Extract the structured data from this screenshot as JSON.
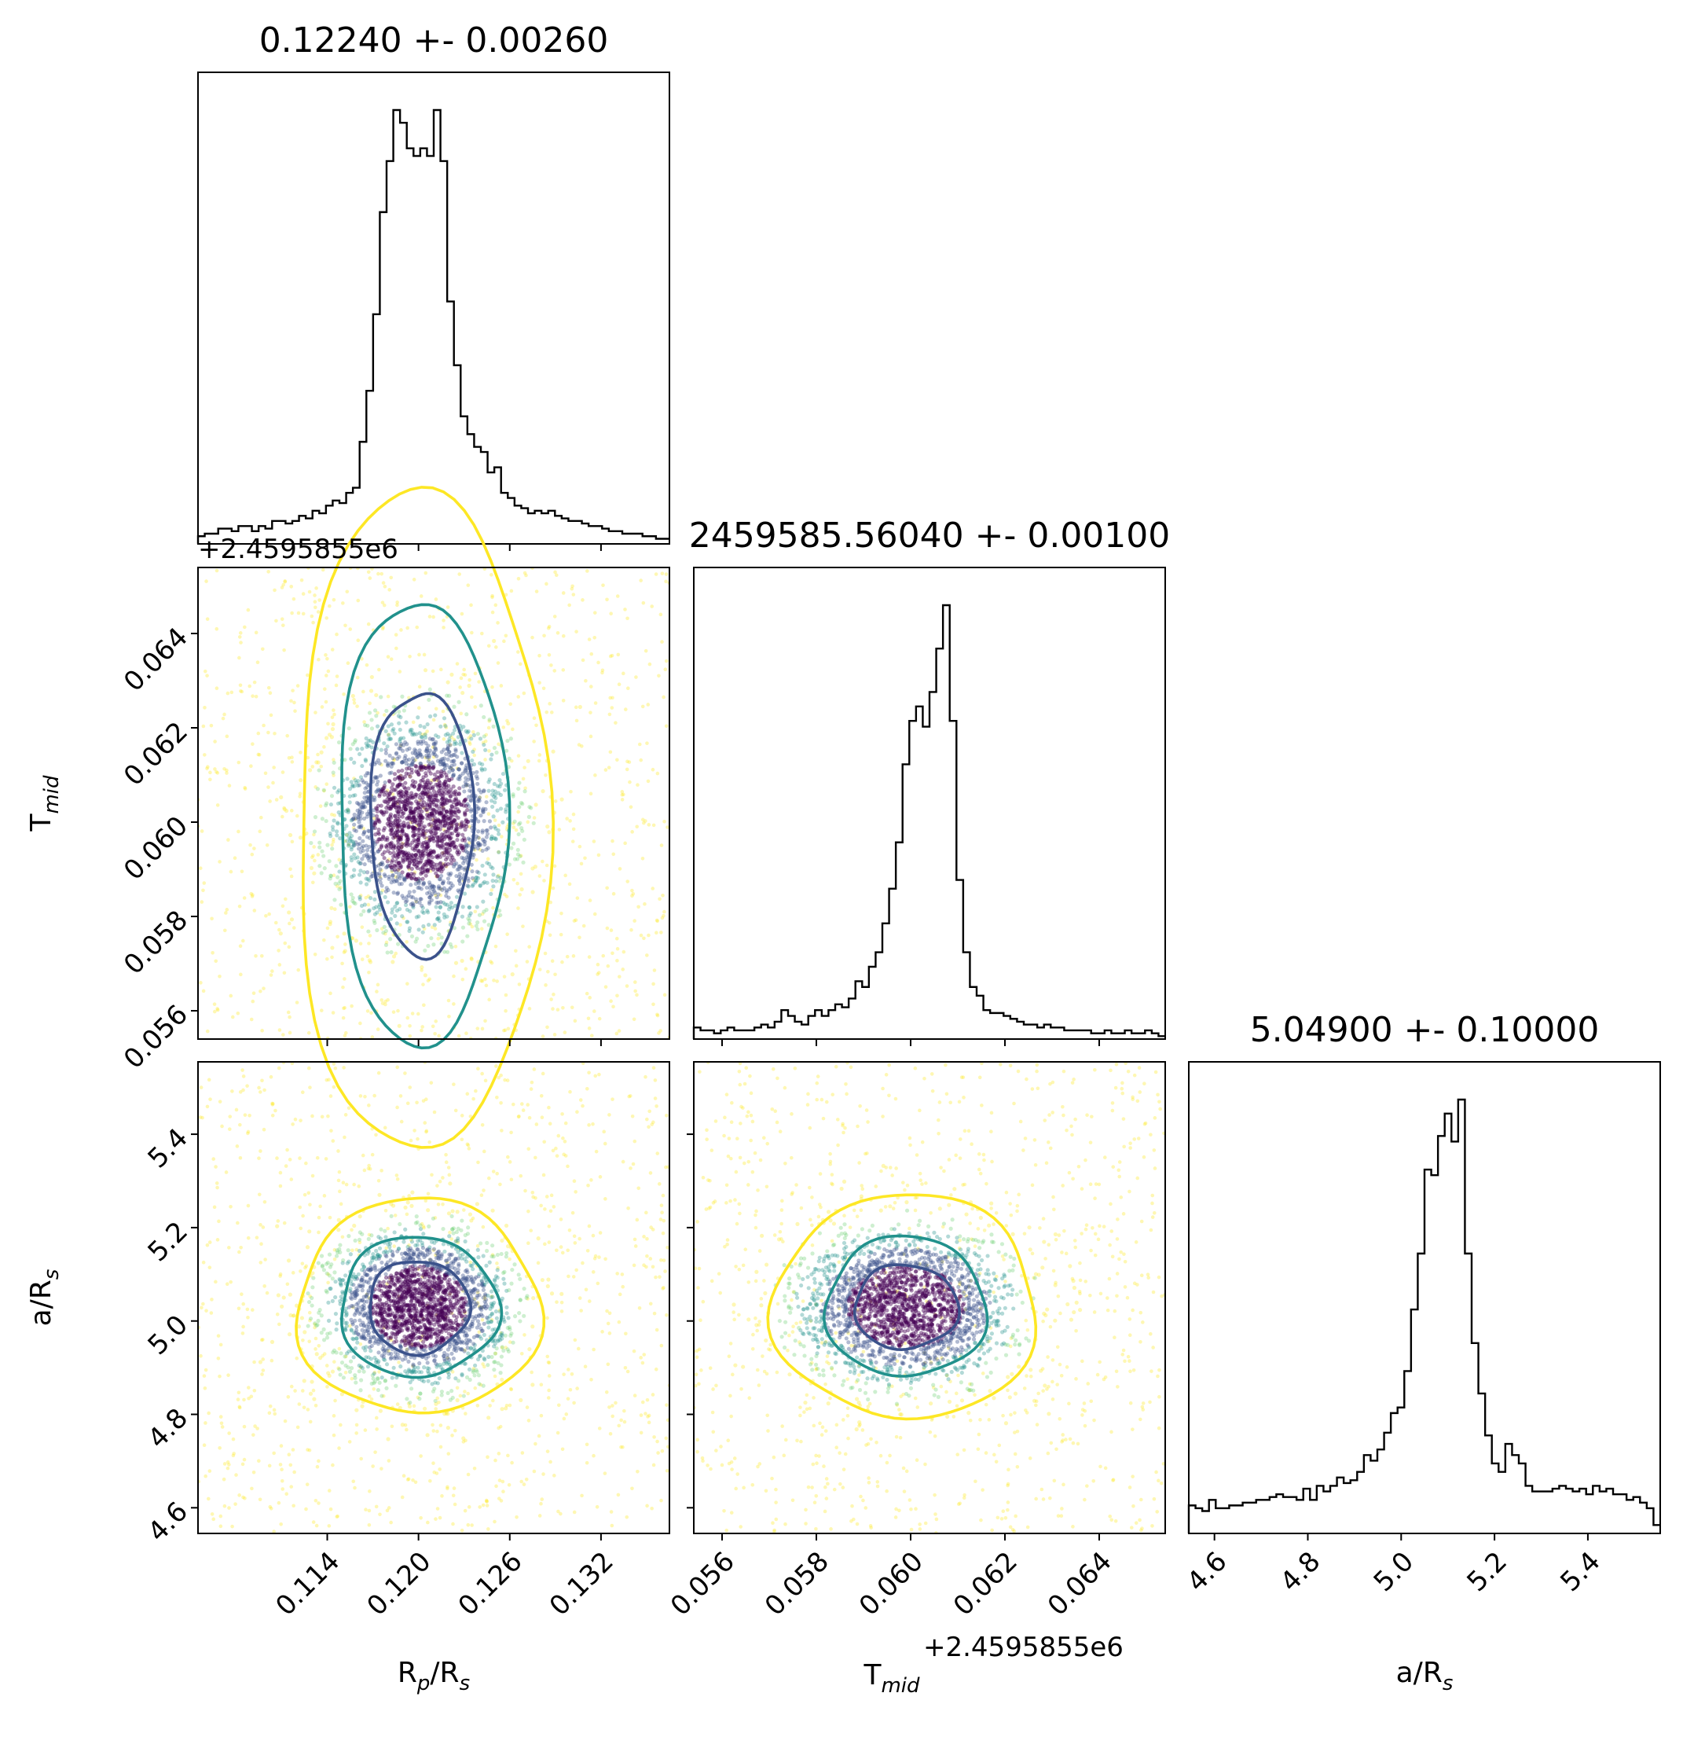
{
  "chart_data": {
    "type": "corner",
    "parameters": [
      {
        "id": "rp",
        "label_main": "R",
        "label_sub1": "p",
        "label_mid": "/R",
        "label_sub2": "s",
        "median": 0.1224,
        "sigma": 0.0026,
        "range": [
          0.1055,
          0.1365
        ],
        "ticks": [
          0.114,
          0.12,
          0.126,
          0.132
        ],
        "tick_labels": [
          "0.114",
          "0.120",
          "0.126",
          "0.132"
        ]
      },
      {
        "id": "tmid",
        "label_main": "T",
        "label_sub1": "mid",
        "label_mid": "",
        "label_sub2": "",
        "median": 0.0604,
        "sigma": 0.001,
        "range": [
          0.0554,
          0.0654
        ],
        "ticks": [
          0.056,
          0.058,
          0.06,
          0.062,
          0.064
        ],
        "tick_labels": [
          "0.056",
          "0.058",
          "0.060",
          "0.062",
          "0.064"
        ],
        "offset_text": "+2.4595855e6"
      },
      {
        "id": "ars",
        "label_main": "a/R",
        "label_sub1": "s",
        "label_mid": "",
        "label_sub2": "",
        "median": 5.049,
        "sigma": 0.1,
        "range": [
          4.545,
          5.555
        ],
        "ticks": [
          4.6,
          4.8,
          5.0,
          5.2,
          5.4
        ],
        "tick_labels": [
          "4.6",
          "4.8",
          "5.0",
          "5.2",
          "5.4"
        ]
      }
    ],
    "titles": [
      "0.12240 +- 0.00260",
      "2459585.56040 +- 0.00100",
      "5.04900 +- 0.10000"
    ],
    "histograms": [
      {
        "param": "rp",
        "n_bins": 70,
        "counts": [
          3,
          4,
          4,
          6,
          6,
          5,
          7,
          7,
          5,
          7,
          6,
          9,
          9,
          8,
          9,
          11,
          10,
          13,
          12,
          15,
          17,
          16,
          20,
          22,
          40,
          60,
          90,
          130,
          150,
          170,
          165,
          155,
          152,
          155,
          152,
          170,
          150,
          95,
          70,
          50,
          43,
          38,
          36,
          28,
          30,
          20,
          18,
          15,
          14,
          12,
          13,
          12,
          13,
          11,
          10,
          9,
          9,
          8,
          7,
          7,
          6,
          5,
          5,
          4,
          4,
          4,
          3,
          3,
          2,
          2
        ]
      },
      {
        "param": "tmid",
        "n_bins": 70,
        "counts": [
          4,
          3,
          3,
          2,
          3,
          4,
          3,
          3,
          3,
          4,
          5,
          4,
          6,
          10,
          8,
          6,
          5,
          8,
          10,
          8,
          10,
          12,
          11,
          14,
          20,
          18,
          25,
          30,
          40,
          52,
          68,
          95,
          110,
          115,
          108,
          120,
          135,
          150,
          110,
          55,
          30,
          18,
          15,
          10,
          9,
          9,
          8,
          7,
          6,
          5,
          5,
          4,
          5,
          4,
          4,
          3,
          3,
          3,
          3,
          2,
          2,
          3,
          2,
          2,
          3,
          2,
          2,
          3,
          2,
          1
        ]
      },
      {
        "param": "ars",
        "n_bins": 70,
        "counts": [
          10,
          9,
          8,
          12,
          9,
          9,
          10,
          10,
          11,
          11,
          12,
          12,
          13,
          14,
          13,
          13,
          12,
          16,
          12,
          17,
          15,
          17,
          20,
          18,
          19,
          22,
          28,
          26,
          30,
          36,
          43,
          45,
          58,
          80,
          100,
          130,
          128,
          142,
          150,
          140,
          155,
          100,
          68,
          50,
          35,
          25,
          22,
          32,
          28,
          25,
          17,
          15,
          15,
          15,
          16,
          17,
          16,
          15,
          16,
          14,
          17,
          15,
          16,
          14,
          14,
          12,
          13,
          11,
          9,
          3
        ]
      }
    ],
    "scatter_panels": [
      {
        "x": "rp",
        "y": "tmid",
        "center": [
          0.1202,
          0.06
        ],
        "sigma": [
          0.0018,
          0.0007
        ],
        "contours": [
          {
            "level": "inner",
            "color": "#3b528b",
            "radii": [
              0.0034,
              0.0028
            ]
          },
          {
            "level": "middle",
            "color": "#21918c",
            "radii": [
              0.0055,
              0.0047
            ]
          },
          {
            "level": "outer",
            "color": "#fde725",
            "radii": [
              0.0082,
              0.007
            ]
          }
        ]
      },
      {
        "x": "rp",
        "y": "ars",
        "center": [
          0.12,
          5.03
        ],
        "sigma": [
          0.0018,
          0.05
        ],
        "contours": [
          {
            "level": "inner",
            "color": "#3b528b",
            "radii": [
              0.0033,
              0.1
            ]
          },
          {
            "level": "middle",
            "color": "#21918c",
            "radii": [
              0.0052,
              0.15
            ]
          },
          {
            "level": "outer",
            "color": "#fde725",
            "radii": [
              0.008,
              0.23
            ]
          }
        ]
      },
      {
        "x": "tmid",
        "y": "ars",
        "center": [
          0.0599,
          5.03
        ],
        "sigma": [
          0.0007,
          0.05
        ],
        "contours": [
          {
            "level": "inner",
            "color": "#3b528b",
            "radii": [
              0.0011,
              0.09
            ]
          },
          {
            "level": "middle",
            "color": "#21918c",
            "radii": [
              0.0017,
              0.15
            ]
          },
          {
            "level": "outer",
            "color": "#fde725",
            "radii": [
              0.0028,
              0.24
            ]
          }
        ]
      }
    ],
    "point_colors": [
      "#440154",
      "#3b528b",
      "#21918c",
      "#5ec962",
      "#fde725"
    ]
  }
}
